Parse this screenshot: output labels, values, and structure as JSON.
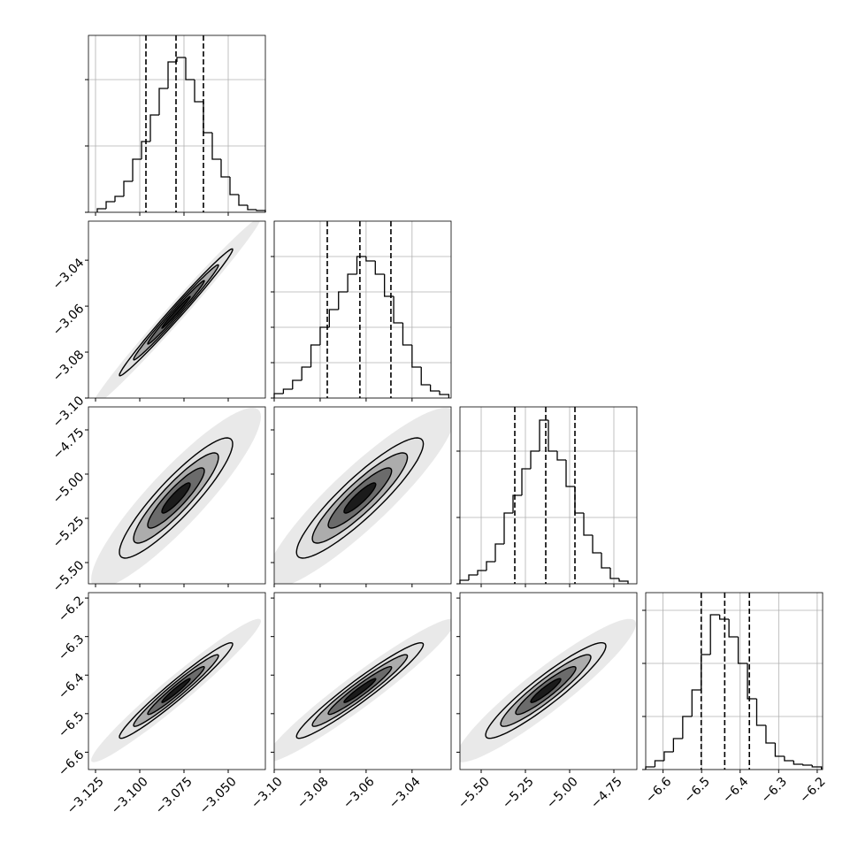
{
  "chart_data": {
    "type": "corner",
    "levels": [
      0.5,
      1,
      1.5,
      2,
      3
    ],
    "params": [
      {
        "xlim": [
          -3.129,
          -3.029
        ],
        "xticks": [
          {
            "value": -3.125,
            "label": "−3.125"
          },
          {
            "value": -3.1,
            "label": "−3.100"
          },
          {
            "value": -3.075,
            "label": "−3.075"
          },
          {
            "value": -3.05,
            "label": "−3.050"
          }
        ],
        "quantiles": [
          -3.0965,
          -3.0795,
          -3.064
        ],
        "sd": 0.016,
        "hist": {
          "bins": [
            -3.124,
            -3.119,
            -3.114,
            -3.109,
            -3.104,
            -3.099,
            -3.094,
            -3.089,
            -3.084,
            -3.079,
            -3.074,
            -3.069,
            -3.064,
            -3.059,
            -3.054,
            -3.049,
            -3.044,
            -3.039,
            -3.034,
            -3.029
          ],
          "counts": [
            4,
            12,
            18,
            35,
            60,
            80,
            110,
            140,
            170,
            175,
            150,
            125,
            90,
            60,
            40,
            20,
            8,
            3,
            2
          ],
          "ylim": [
            0,
            200
          ],
          "yticks": [
            0,
            75,
            150
          ]
        }
      },
      {
        "xlim": [
          -3.1,
          -3.023
        ],
        "xticks": [
          {
            "value": -3.1,
            "label": "−3.10"
          },
          {
            "value": -3.08,
            "label": "−3.08"
          },
          {
            "value": -3.06,
            "label": "−3.06"
          },
          {
            "value": -3.04,
            "label": "−3.04"
          }
        ],
        "quantiles": [
          -3.0769,
          -3.0627,
          -3.0492
        ],
        "sd": 0.0138,
        "hist": {
          "bins": [
            -3.1,
            -3.096,
            -3.092,
            -3.088,
            -3.084,
            -3.08,
            -3.076,
            -3.072,
            -3.068,
            -3.064,
            -3.06,
            -3.056,
            -3.052,
            -3.048,
            -3.044,
            -3.04,
            -3.036,
            -3.032,
            -3.028,
            -3.024
          ],
          "counts": [
            5,
            10,
            20,
            35,
            60,
            80,
            100,
            120,
            140,
            160,
            155,
            140,
            115,
            85,
            60,
            35,
            15,
            8,
            4
          ],
          "ylim": [
            0,
            200
          ],
          "yticks": [
            0,
            40,
            80,
            120,
            160
          ]
        }
      },
      {
        "xlim": [
          -5.62,
          -4.62
        ],
        "xticks": [
          {
            "value": -5.5,
            "label": "−5.50"
          },
          {
            "value": -5.25,
            "label": "−5.25"
          },
          {
            "value": -5.0,
            "label": "−5.00"
          },
          {
            "value": -4.75,
            "label": "−4.75"
          }
        ],
        "quantiles": [
          -5.31,
          -5.135,
          -4.97
        ],
        "sd": 0.17,
        "hist": {
          "bins": [
            -5.62,
            -5.57,
            -5.52,
            -5.47,
            -5.42,
            -5.37,
            -5.32,
            -5.27,
            -5.22,
            -5.17,
            -5.12,
            -5.07,
            -5.02,
            -4.97,
            -4.92,
            -4.87,
            -4.82,
            -4.77,
            -4.72,
            -4.67
          ],
          "counts": [
            4,
            10,
            15,
            25,
            45,
            80,
            100,
            130,
            150,
            185,
            150,
            140,
            110,
            80,
            55,
            35,
            18,
            6,
            3
          ],
          "ylim": [
            0,
            200
          ],
          "yticks": [
            0,
            75,
            150
          ]
        }
      },
      {
        "xlim": [
          -6.645,
          -6.186
        ],
        "xticks": [
          {
            "value": -6.6,
            "label": "−6.6"
          },
          {
            "value": -6.5,
            "label": "−6.5"
          },
          {
            "value": -6.4,
            "label": "−6.4"
          },
          {
            "value": -6.3,
            "label": "−6.3"
          },
          {
            "value": -6.2,
            "label": "−6.2"
          }
        ],
        "quantiles": [
          -6.501,
          -6.44,
          -6.376
        ],
        "sd": 0.062,
        "hist": {
          "bins": [
            -6.645,
            -6.621,
            -6.597,
            -6.573,
            -6.549,
            -6.525,
            -6.501,
            -6.477,
            -6.453,
            -6.429,
            -6.405,
            -6.381,
            -6.357,
            -6.333,
            -6.309,
            -6.285,
            -6.261,
            -6.237,
            -6.213,
            -6.189
          ],
          "counts": [
            3,
            10,
            20,
            35,
            60,
            90,
            130,
            175,
            170,
            150,
            120,
            80,
            50,
            30,
            15,
            10,
            6,
            5,
            3
          ],
          "ylim": [
            0,
            200
          ],
          "yticks": [
            0,
            60,
            120,
            180
          ]
        }
      }
    ],
    "pairs": [
      {
        "x": 0,
        "y": 1,
        "rho": 0.99
      },
      {
        "x": 0,
        "y": 2,
        "rho": 0.9
      },
      {
        "x": 1,
        "y": 2,
        "rho": 0.9
      },
      {
        "x": 0,
        "y": 3,
        "rho": 0.97
      },
      {
        "x": 1,
        "y": 3,
        "rho": 0.96
      },
      {
        "x": 2,
        "y": 3,
        "rho": 0.93
      }
    ]
  }
}
